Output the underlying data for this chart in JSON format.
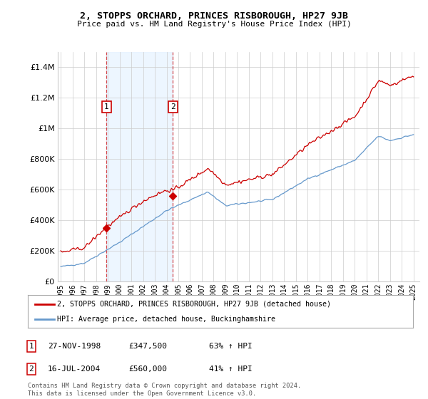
{
  "title": "2, STOPPS ORCHARD, PRINCES RISBOROUGH, HP27 9JB",
  "subtitle": "Price paid vs. HM Land Registry's House Price Index (HPI)",
  "legend_line1": "2, STOPPS ORCHARD, PRINCES RISBOROUGH, HP27 9JB (detached house)",
  "legend_line2": "HPI: Average price, detached house, Buckinghamshire",
  "footer": "Contains HM Land Registry data © Crown copyright and database right 2024.\nThis data is licensed under the Open Government Licence v3.0.",
  "sales": [
    {
      "num": 1,
      "date": "27-NOV-1998",
      "price_str": "£347,500",
      "price": 347500,
      "pct": "63% ↑ HPI",
      "year": 1998.89
    },
    {
      "num": 2,
      "date": "16-JUL-2004",
      "price_str": "£560,000",
      "price": 560000,
      "pct": "41% ↑ HPI",
      "year": 2004.54
    }
  ],
  "red_line_color": "#cc0000",
  "blue_line_color": "#6699cc",
  "background_color": "#ffffff",
  "grid_color": "#cccccc",
  "shaded_band_color": "#ddeeff",
  "ylim": [
    0,
    1500000
  ],
  "yticks": [
    0,
    200000,
    400000,
    600000,
    800000,
    1000000,
    1200000,
    1400000
  ],
  "xlim_start": 1994.75,
  "xlim_end": 2025.5,
  "xtick_years": [
    1995,
    1996,
    1997,
    1998,
    1999,
    2000,
    2001,
    2002,
    2003,
    2004,
    2005,
    2006,
    2007,
    2008,
    2009,
    2010,
    2011,
    2012,
    2013,
    2014,
    2015,
    2016,
    2017,
    2018,
    2019,
    2020,
    2021,
    2022,
    2023,
    2024,
    2025
  ]
}
